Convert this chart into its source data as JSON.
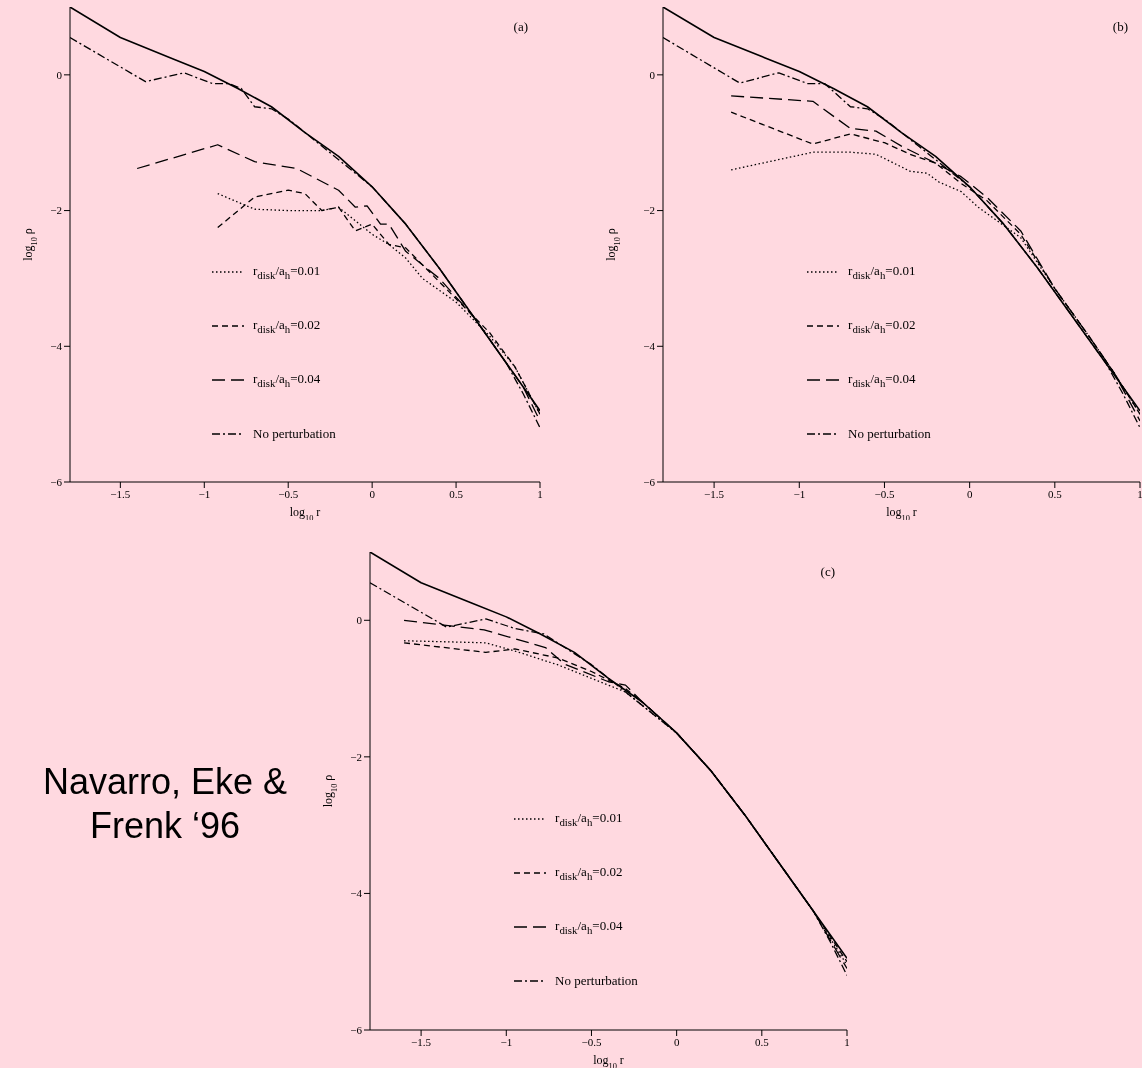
{
  "chart_data": [
    {
      "type": "line",
      "xlabel": "log$_{10}$ r",
      "ylabel": "log$_{10}$ ρ",
      "annotations": [
        "(a)"
      ],
      "xlim": [
        -1.8,
        1
      ],
      "ylim": [
        -6,
        1
      ],
      "xticks": [
        -1.5,
        -1,
        -0.5,
        0,
        0.5,
        1
      ],
      "yticks": [
        -6,
        -4,
        -2,
        0
      ],
      "grid": false,
      "legend": "bottom",
      "series": [
        {
          "color": "#000000",
          "line_style": "solid",
          "x": [
            -1.8,
            -1.5,
            -1.2,
            -1,
            -0.8,
            -0.6,
            -0.4,
            -0.2,
            0,
            0.2,
            0.4,
            0.6,
            0.8,
            1
          ],
          "values": [
            1.0,
            0.55,
            0.25,
            0.05,
            -0.2,
            -0.47,
            -0.85,
            -1.2,
            -1.65,
            -2.2,
            -2.85,
            -3.55,
            -4.25,
            -4.95
          ]
        },
        {
          "name": "r$_{disk}$/a$_{h}$=0.01",
          "color": "#000000",
          "line_style": "dotted",
          "x": [
            -0.92,
            -0.7,
            -0.5,
            -0.3,
            -0.2,
            -0.1,
            0,
            0.1,
            0.2,
            0.3,
            0.5,
            0.7,
            0.85,
            1
          ],
          "values": [
            -1.75,
            -1.98,
            -2.0,
            -2.0,
            -1.95,
            -2.15,
            -2.35,
            -2.5,
            -2.7,
            -3.0,
            -3.35,
            -3.85,
            -4.3,
            -5.0
          ]
        },
        {
          "name": "r$_{disk}$/a$_{h}$=0.02",
          "color": "#000000",
          "line_style": "dashed",
          "x": [
            -0.92,
            -0.7,
            -0.5,
            -0.4,
            -0.3,
            -0.2,
            -0.1,
            0,
            0.1,
            0.2,
            0.3,
            0.5,
            0.7,
            0.85,
            1
          ],
          "values": [
            -2.25,
            -1.8,
            -1.7,
            -1.75,
            -2.0,
            -1.95,
            -2.3,
            -2.2,
            -2.5,
            -2.55,
            -2.8,
            -3.3,
            -3.8,
            -4.3,
            -5.0
          ]
        },
        {
          "name": "r$_{disk}$/a$_{h}$=0.04",
          "color": "#000000",
          "line_style": "longdash",
          "x": [
            -1.4,
            -0.92,
            -0.7,
            -0.45,
            -0.2,
            -0.1,
            -0.03,
            0.05,
            0.1,
            0.2,
            0.4,
            0.6,
            0.8,
            0.9,
            1
          ],
          "values": [
            -1.38,
            -1.03,
            -1.28,
            -1.38,
            -1.7,
            -1.95,
            -1.93,
            -2.2,
            -2.2,
            -2.6,
            -3.0,
            -3.55,
            -4.25,
            -4.6,
            -5.1
          ]
        },
        {
          "name": "No perturbation",
          "color": "#000000",
          "line_style": "dashdot",
          "x": [
            -1.8,
            -1.35,
            -1.12,
            -0.95,
            -0.85,
            -0.78,
            -0.7,
            -0.6,
            -0.5,
            -0.3,
            0,
            0.2,
            0.4,
            0.6,
            0.8,
            0.9,
            1
          ],
          "values": [
            0.55,
            -0.1,
            0.03,
            -0.13,
            -0.13,
            -0.2,
            -0.47,
            -0.5,
            -0.65,
            -1.05,
            -1.65,
            -2.2,
            -2.85,
            -3.55,
            -4.25,
            -4.7,
            -5.2
          ]
        }
      ]
    },
    {
      "type": "line",
      "xlabel": "log$_{10}$ r",
      "ylabel": "log$_{10}$ ρ",
      "annotations": [
        "(b)"
      ],
      "xlim": [
        -1.8,
        1
      ],
      "ylim": [
        -6,
        1
      ],
      "xticks": [
        -1.5,
        -1,
        -0.5,
        0,
        0.5,
        1
      ],
      "yticks": [
        -6,
        -4,
        -2,
        0
      ],
      "grid": false,
      "legend": "bottom",
      "series": [
        {
          "color": "#000000",
          "line_style": "solid",
          "x": [
            -1.8,
            -1.5,
            -1.2,
            -1,
            -0.8,
            -0.6,
            -0.4,
            -0.2,
            0,
            0.2,
            0.4,
            0.6,
            0.8,
            1
          ],
          "values": [
            1.0,
            0.55,
            0.25,
            0.05,
            -0.2,
            -0.47,
            -0.85,
            -1.2,
            -1.65,
            -2.2,
            -2.85,
            -3.55,
            -4.25,
            -4.95
          ]
        },
        {
          "name": "r$_{disk}$/a$_{h}$=0.01",
          "color": "#000000",
          "line_style": "dotted",
          "x": [
            -1.4,
            -0.92,
            -0.7,
            -0.55,
            -0.35,
            -0.25,
            -0.18,
            -0.05,
            0.05,
            0.3,
            0.5,
            0.7,
            0.85,
            1
          ],
          "values": [
            -1.4,
            -1.14,
            -1.14,
            -1.17,
            -1.42,
            -1.45,
            -1.58,
            -1.72,
            -1.95,
            -2.4,
            -3.15,
            -3.85,
            -4.4,
            -5.0
          ]
        },
        {
          "name": "r$_{disk}$/a$_{h}$=0.02",
          "color": "#000000",
          "line_style": "dashed",
          "x": [
            -1.4,
            -0.92,
            -0.7,
            -0.5,
            -0.35,
            -0.2,
            -0.05,
            0.1,
            0.3,
            0.5,
            0.7,
            0.85,
            1
          ],
          "values": [
            -0.55,
            -1.02,
            -0.87,
            -1.0,
            -1.17,
            -1.3,
            -1.6,
            -1.85,
            -2.35,
            -3.15,
            -3.85,
            -4.4,
            -5.0
          ]
        },
        {
          "name": "r$_{disk}$/a$_{h}$=0.04",
          "color": "#000000",
          "line_style": "longdash",
          "x": [
            -1.4,
            -0.92,
            -0.7,
            -0.55,
            -0.4,
            -0.2,
            -0.05,
            0.1,
            0.3,
            0.5,
            0.7,
            0.85,
            1
          ],
          "values": [
            -0.31,
            -0.39,
            -0.79,
            -0.83,
            -1.05,
            -1.3,
            -1.5,
            -1.8,
            -2.3,
            -3.15,
            -3.85,
            -4.4,
            -5.1
          ]
        },
        {
          "name": "No perturbation",
          "color": "#000000",
          "line_style": "dashdot",
          "x": [
            -1.8,
            -1.35,
            -1.12,
            -0.95,
            -0.85,
            -0.7,
            -0.6,
            -0.5,
            -0.3,
            0,
            0.2,
            0.4,
            0.6,
            0.8,
            0.9,
            1
          ],
          "values": [
            0.55,
            -0.12,
            0.03,
            -0.13,
            -0.13,
            -0.47,
            -0.5,
            -0.65,
            -1.05,
            -1.65,
            -2.2,
            -2.85,
            -3.55,
            -4.25,
            -4.7,
            -5.2
          ]
        }
      ]
    },
    {
      "type": "line",
      "xlabel": "log$_{10}$ r",
      "ylabel": "log$_{10}$ ρ",
      "annotations": [
        "(c)",
        "Navarro, Eke & Frenk ‘96"
      ],
      "xlim": [
        -1.8,
        1
      ],
      "ylim": [
        -6,
        1
      ],
      "xticks": [
        -1.5,
        -1,
        -0.5,
        0,
        0.5,
        1
      ],
      "yticks": [
        -6,
        -4,
        -2,
        0
      ],
      "grid": false,
      "legend": "bottom",
      "series": [
        {
          "color": "#000000",
          "line_style": "solid",
          "x": [
            -1.8,
            -1.5,
            -1.2,
            -1,
            -0.8,
            -0.6,
            -0.4,
            -0.2,
            0,
            0.2,
            0.4,
            0.6,
            0.8,
            1
          ],
          "values": [
            1.0,
            0.55,
            0.25,
            0.05,
            -0.2,
            -0.47,
            -0.85,
            -1.2,
            -1.65,
            -2.2,
            -2.85,
            -3.55,
            -4.25,
            -4.95
          ]
        },
        {
          "name": "r$_{disk}$/a$_{h}$=0.01",
          "color": "#000000",
          "line_style": "dotted",
          "x": [
            -1.6,
            -1.12,
            -0.95,
            -0.7,
            -0.5,
            -0.3,
            -0.2,
            0,
            0.2,
            0.4,
            0.6,
            0.8,
            1
          ],
          "values": [
            -0.3,
            -0.33,
            -0.45,
            -0.65,
            -0.85,
            -1.05,
            -1.25,
            -1.65,
            -2.2,
            -2.85,
            -3.55,
            -4.25,
            -5.05
          ]
        },
        {
          "name": "r$_{disk}$/a$_{h}$=0.02",
          "color": "#000000",
          "line_style": "dashed",
          "x": [
            -1.6,
            -1.12,
            -0.95,
            -0.7,
            -0.5,
            -0.3,
            -0.2,
            0,
            0.2,
            0.4,
            0.6,
            0.8,
            1
          ],
          "values": [
            -0.33,
            -0.47,
            -0.42,
            -0.55,
            -0.75,
            -1.0,
            -1.2,
            -1.65,
            -2.2,
            -2.85,
            -3.55,
            -4.25,
            -5.0
          ]
        },
        {
          "name": "r$_{disk}$/a$_{h}$=0.04",
          "color": "#000000",
          "line_style": "longdash",
          "x": [
            -1.6,
            -1.13,
            -0.77,
            -0.66,
            -0.4,
            -0.3,
            -0.2,
            0,
            0.2,
            0.4,
            0.6,
            0.8,
            1
          ],
          "values": [
            0.0,
            -0.14,
            -0.4,
            -0.64,
            -0.9,
            -0.95,
            -1.2,
            -1.65,
            -2.2,
            -2.85,
            -3.55,
            -4.25,
            -5.1
          ]
        },
        {
          "name": "No perturbation",
          "color": "#000000",
          "line_style": "dashdot",
          "x": [
            -1.8,
            -1.35,
            -1.12,
            -0.95,
            -0.78,
            -0.5,
            -0.3,
            0,
            0.2,
            0.4,
            0.6,
            0.8,
            0.9,
            1
          ],
          "values": [
            0.55,
            -0.1,
            0.02,
            -0.12,
            -0.2,
            -0.65,
            -1.05,
            -1.65,
            -2.2,
            -2.85,
            -3.55,
            -4.25,
            -4.7,
            -5.2
          ]
        }
      ]
    }
  ]
}
